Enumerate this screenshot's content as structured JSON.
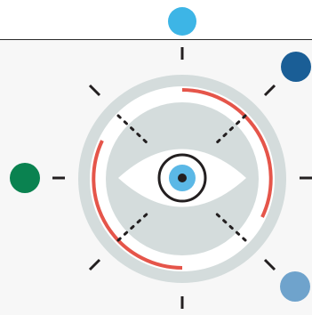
{
  "colors": {
    "background": "#ffffff",
    "panel": "#f7f7f7",
    "outer_ring": "#d4dcdc",
    "inner_disc": "#d4dcdc",
    "arc_accent": "#e5554a",
    "eye_white": "#ffffff",
    "iris": "#5bb8e6",
    "pupil": "#231f20",
    "ticks": "#231f20"
  },
  "dots": [
    {
      "name": "top-dot",
      "color": "#3db5e6"
    },
    {
      "name": "top-right-dot",
      "color": "#1a5e96"
    },
    {
      "name": "left-dot",
      "color": "#0a8250"
    },
    {
      "name": "bottom-right-dot",
      "color": "#6fa3cc"
    }
  ],
  "icons": {
    "center": "eye-icon",
    "rings": "target-rings"
  }
}
